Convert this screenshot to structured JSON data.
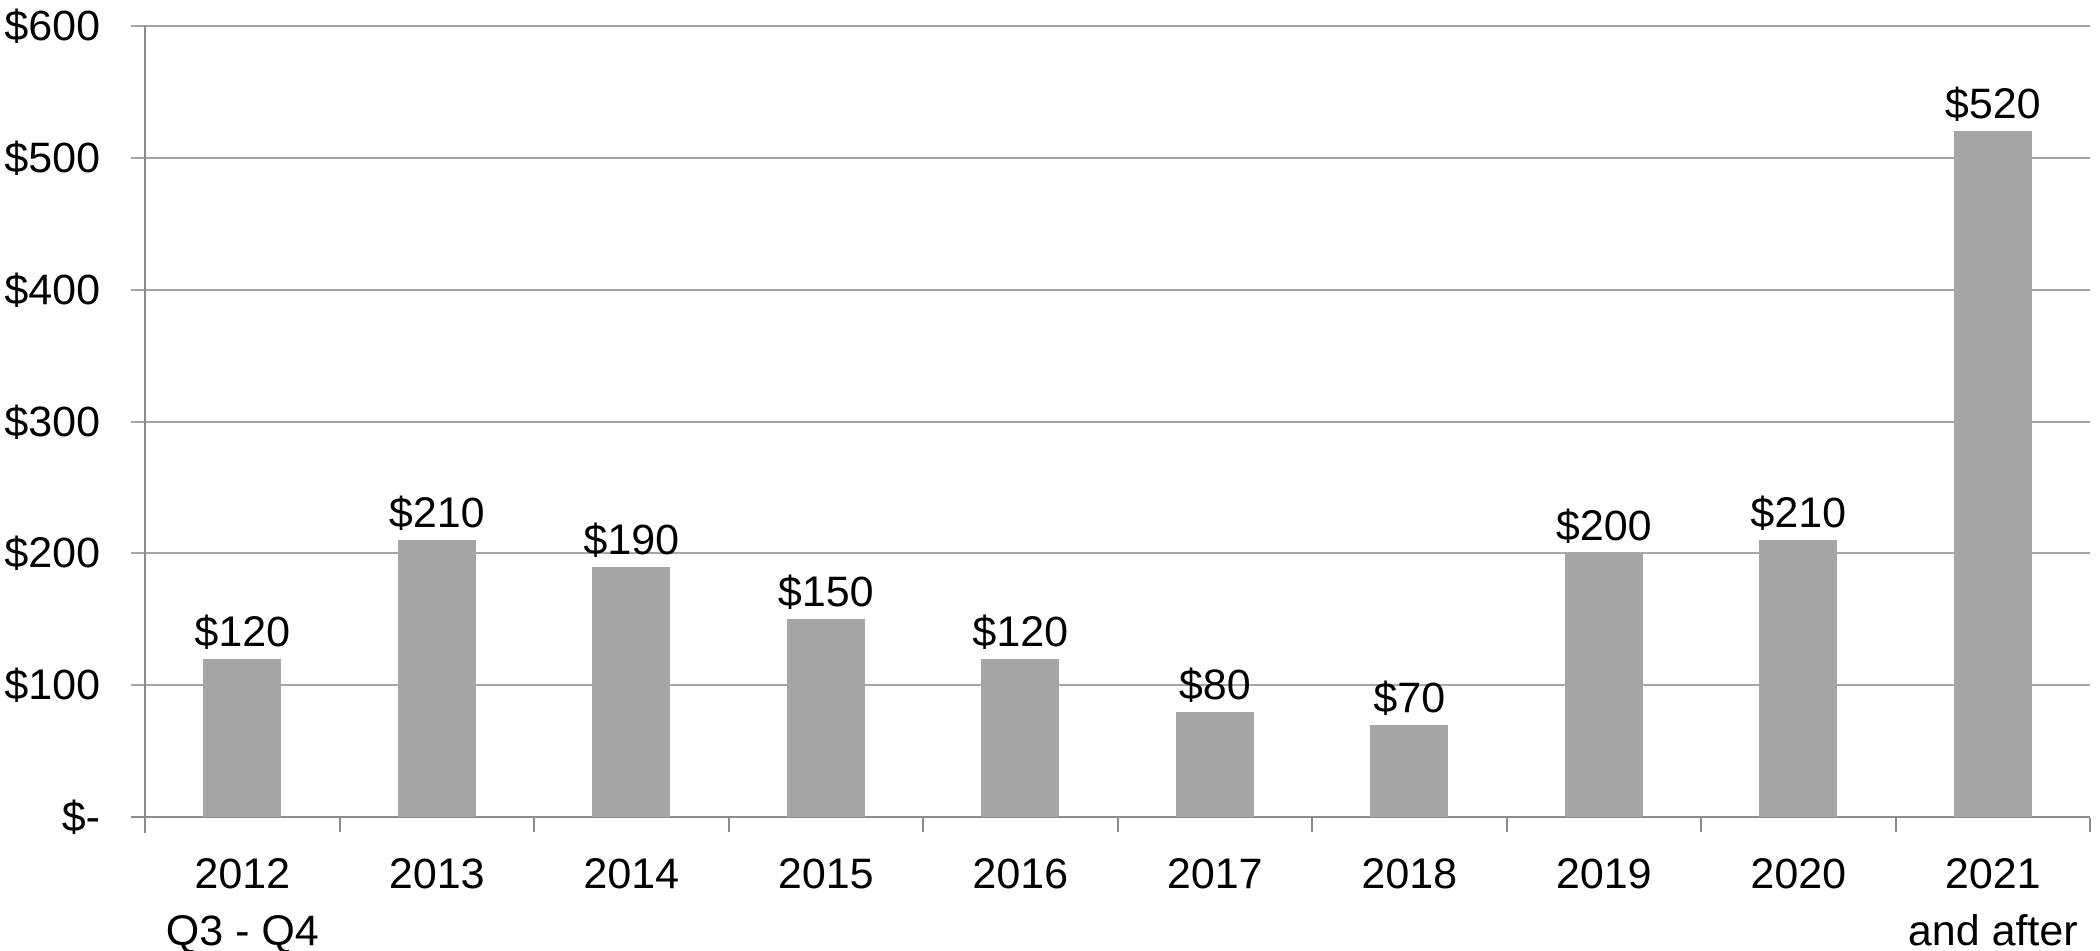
{
  "chart_data": {
    "type": "bar",
    "title": "",
    "xlabel": "",
    "ylabel": "",
    "categories": [
      {
        "label": "2012",
        "sublabel": "Q3 - Q4"
      },
      {
        "label": "2013",
        "sublabel": ""
      },
      {
        "label": "2014",
        "sublabel": ""
      },
      {
        "label": "2015",
        "sublabel": ""
      },
      {
        "label": "2016",
        "sublabel": ""
      },
      {
        "label": "2017",
        "sublabel": ""
      },
      {
        "label": "2018",
        "sublabel": ""
      },
      {
        "label": "2019",
        "sublabel": ""
      },
      {
        "label": "2020",
        "sublabel": ""
      },
      {
        "label": "2021",
        "sublabel": "and after"
      }
    ],
    "values": [
      120,
      210,
      190,
      150,
      120,
      80,
      70,
      200,
      210,
      520
    ],
    "value_labels": [
      "$120",
      "$210",
      "$190",
      "$150",
      "$120",
      "$80",
      "$70",
      "$200",
      "$210",
      "$520"
    ],
    "y_ticks": [
      {
        "value": 0,
        "label": "$-"
      },
      {
        "value": 100,
        "label": "$100"
      },
      {
        "value": 200,
        "label": "$200"
      },
      {
        "value": 300,
        "label": "$300"
      },
      {
        "value": 400,
        "label": "$400"
      },
      {
        "value": 500,
        "label": "$500"
      },
      {
        "value": 600,
        "label": "$600"
      }
    ],
    "ylim": [
      0,
      600
    ],
    "grid": "horizontal",
    "legend": "none",
    "bar_color": "#a6a6a6",
    "gridline_color": "#a6a6a6",
    "axis_color": "#8c8c8c",
    "text_color": "#000000"
  }
}
